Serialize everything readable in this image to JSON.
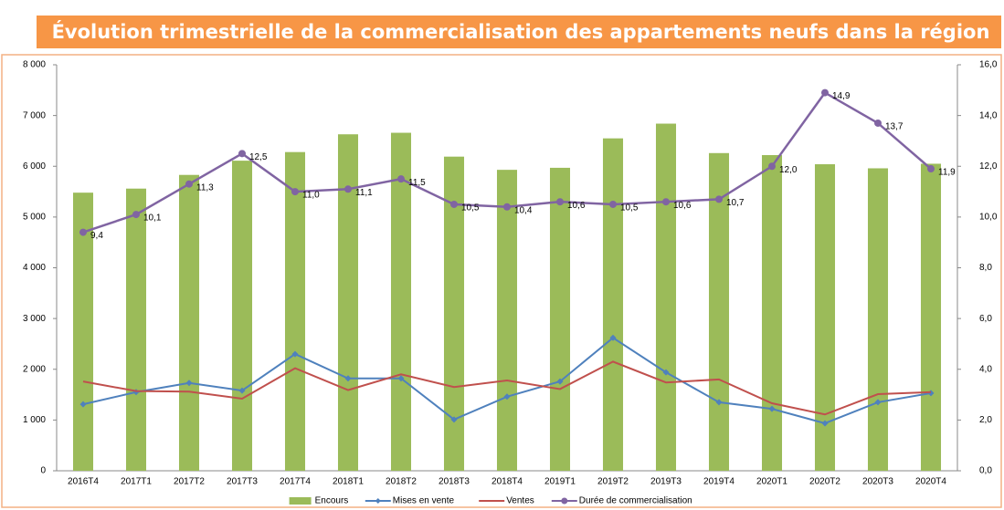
{
  "chart_data": {
    "type": "bar",
    "title": "Évolution trimestrielle de la commercialisation des appartements neufs dans la région",
    "categories": [
      "2016T4",
      "2017T1",
      "2017T2",
      "2017T3",
      "2017T4",
      "2018T1",
      "2018T2",
      "2018T3",
      "2018T4",
      "2019T1",
      "2019T2",
      "2019T3",
      "2019T4",
      "2020T1",
      "2020T2",
      "2020T3",
      "2020T4"
    ],
    "ylim": [
      0,
      8000
    ],
    "yticks": [
      {
        "value": 0,
        "label": "0"
      },
      {
        "value": 1000,
        "label": "1 000"
      },
      {
        "value": 2000,
        "label": "2 000"
      },
      {
        "value": 3000,
        "label": "3 000"
      },
      {
        "value": 4000,
        "label": "4 000"
      },
      {
        "value": 5000,
        "label": "5 000"
      },
      {
        "value": 6000,
        "label": "6 000"
      },
      {
        "value": 7000,
        "label": "7 000"
      },
      {
        "value": 8000,
        "label": "8 000"
      }
    ],
    "y2lim": [
      0,
      16
    ],
    "y2ticks": [
      {
        "value": 0,
        "label": "0,0"
      },
      {
        "value": 2,
        "label": "2,0"
      },
      {
        "value": 4,
        "label": "4,0"
      },
      {
        "value": 6,
        "label": "6,0"
      },
      {
        "value": 8,
        "label": "8,0"
      },
      {
        "value": 10,
        "label": "10,0"
      },
      {
        "value": 12,
        "label": "12,0"
      },
      {
        "value": 14,
        "label": "14,0"
      },
      {
        "value": 16,
        "label": "16,0"
      }
    ],
    "legend": "bottom",
    "series": [
      {
        "name": "Encours",
        "type": "bar",
        "color": "#9bbb59",
        "values": [
          5480,
          5560,
          5830,
          6110,
          6280,
          6630,
          6660,
          6190,
          5930,
          5970,
          6550,
          6840,
          6260,
          6220,
          6040,
          5960,
          6050
        ]
      },
      {
        "name": "Mises en vente",
        "type": "line",
        "marker": "diamond",
        "color": "#4f81bd",
        "values": [
          1310,
          1550,
          1730,
          1580,
          2300,
          1820,
          1820,
          1010,
          1460,
          1760,
          2620,
          1940,
          1350,
          1220,
          935,
          1350,
          1530
        ]
      },
      {
        "name": "Ventes",
        "type": "line",
        "color": "#c0504d",
        "values": [
          1760,
          1570,
          1560,
          1420,
          2020,
          1590,
          1900,
          1650,
          1780,
          1610,
          2150,
          1740,
          1800,
          1330,
          1110,
          1510,
          1550
        ]
      },
      {
        "name": "Durée de commercialisation",
        "type": "line",
        "marker": "circle",
        "axis": "y2",
        "color": "#8064a2",
        "values": [
          9.4,
          10.1,
          11.3,
          12.5,
          11.0,
          11.1,
          11.5,
          10.5,
          10.4,
          10.6,
          10.5,
          10.6,
          10.7,
          12.0,
          14.9,
          13.7,
          11.9
        ],
        "value_labels": [
          "9,4",
          "10,1",
          "11,3",
          "12,5",
          "11,0",
          "11,1",
          "11,5",
          "10,5",
          "10,4",
          "10,6",
          "10,5",
          "10,6",
          "10,7",
          "12,0",
          "14,9",
          "13,7",
          "11,9"
        ]
      }
    ]
  }
}
